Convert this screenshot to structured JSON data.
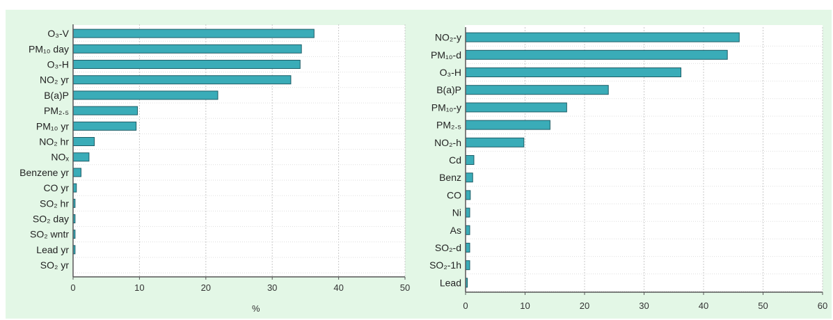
{
  "chart_data": [
    {
      "type": "bar",
      "orientation": "horizontal",
      "categories": [
        "O₃-V",
        "PM₁₀ day",
        "O₃-H",
        "NO₂ yr",
        "B(a)P",
        "PM₂.₅",
        "PM₁₀ yr",
        "NO₂ hr",
        "NOₓ",
        "Benzene yr",
        "CO yr",
        "SO₂ hr",
        "SO₂ day",
        "SO₂ wntr",
        "Lead yr",
        "SO₂ yr"
      ],
      "values": [
        36.3,
        34.4,
        34.2,
        32.8,
        21.8,
        9.7,
        9.5,
        3.2,
        2.4,
        1.2,
        0.5,
        0.3,
        0.3,
        0.3,
        0.3,
        0
      ],
      "xlim": [
        0,
        50
      ],
      "xticks": [
        0,
        10,
        20,
        30,
        40,
        50
      ],
      "xlabel": "%",
      "grid": true,
      "bar_color": "#3aacb8"
    },
    {
      "type": "bar",
      "orientation": "horizontal",
      "categories": [
        "NO₂-y",
        "PM₁₀-d",
        "O₃-H",
        "B(a)P",
        "PM₁₀-y",
        "PM₂.₅",
        "NO₂-h",
        "Cd",
        "Benz",
        "CO",
        "Ni",
        "As",
        "SO₂-d",
        "SO₂-1h",
        "Lead"
      ],
      "values": [
        46,
        44,
        36.2,
        24,
        17,
        14.2,
        9.8,
        1.4,
        1.2,
        0.8,
        0.7,
        0.7,
        0.7,
        0.7,
        0.3
      ],
      "xlim": [
        0,
        60
      ],
      "xticks": [
        0,
        10,
        20,
        30,
        40,
        50,
        60
      ],
      "xlabel": "",
      "grid": true,
      "bar_color": "#3aacb8"
    }
  ]
}
